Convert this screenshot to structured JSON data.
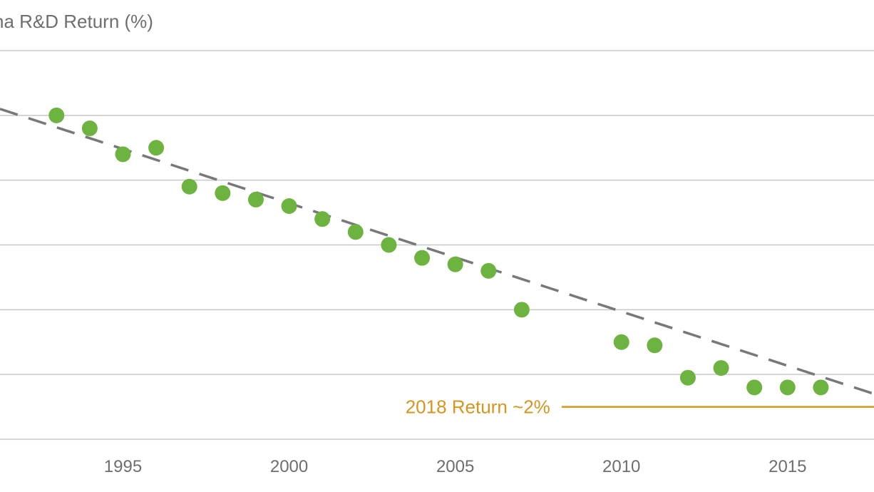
{
  "chart_data": {
    "type": "scatter",
    "title": "ha R&D Return (%)",
    "xlabel": "",
    "ylabel": "",
    "xlim": [
      1991.3,
      2017.6
    ],
    "ylim": [
      1,
      7
    ],
    "grid": true,
    "x_ticks": [
      {
        "value": 1995,
        "label": "1995"
      },
      {
        "value": 2000,
        "label": "2000"
      },
      {
        "value": 2005,
        "label": "2005"
      },
      {
        "value": 2010,
        "label": "2010"
      },
      {
        "value": 2015,
        "label": "2015"
      }
    ],
    "y_gridlines": [
      1,
      2,
      3,
      4,
      5,
      6,
      7
    ],
    "series": [
      {
        "color": "#6db33f",
        "x": [
          1993,
          1994,
          1995,
          1996,
          1997,
          1998,
          1999,
          2000,
          2001,
          2002,
          2003,
          2004,
          2005,
          2006,
          2007,
          2010,
          2011,
          2012,
          2013,
          2014,
          2015,
          2016
        ],
        "y": [
          6.0,
          5.8,
          5.4,
          5.5,
          4.9,
          4.8,
          4.7,
          4.6,
          4.4,
          4.2,
          4.0,
          3.8,
          3.7,
          3.6,
          3.0,
          2.5,
          2.45,
          1.95,
          2.1,
          1.8,
          1.8,
          1.8
        ]
      }
    ],
    "trendline": {
      "style": "dashed",
      "color": "#77787b",
      "x": [
        1991.3,
        2017.6
      ],
      "y": [
        6.1,
        1.7
      ]
    },
    "annotations": [
      {
        "text": "2018 Return ~2%",
        "color": "#d4961f",
        "y": 1.5,
        "x_start": 2008.2,
        "x_end": 2017.6
      }
    ]
  }
}
